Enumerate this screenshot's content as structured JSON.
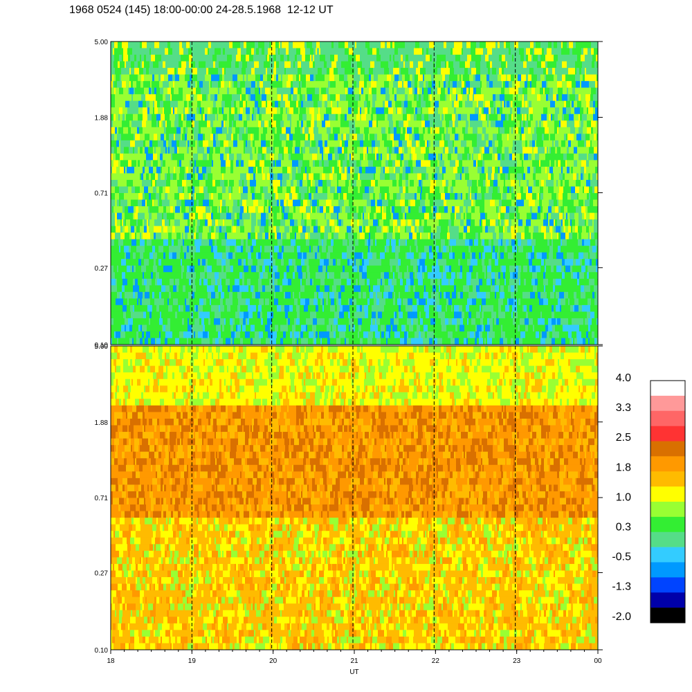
{
  "title": "1968 0524 (145) 18:00-00:00 24-28.5.1968  12-12 UT",
  "chart_data": [
    {
      "type": "heatmap",
      "panel": "top",
      "yticks": [
        "5.00",
        "1.88",
        "0.71",
        "0.27",
        "0.10"
      ],
      "xlim": [
        18,
        24
      ],
      "ylim": [
        0.1,
        5.0
      ],
      "yscale": "log"
    },
    {
      "type": "heatmap",
      "panel": "bottom",
      "yticks": [
        "5.00",
        "1.88",
        "0.71",
        "0.27",
        "0.10"
      ],
      "xticks": [
        "18",
        "19",
        "20",
        "21",
        "22",
        "23",
        "00"
      ],
      "xlabel": "UT",
      "xlim": [
        18,
        24
      ],
      "ylim": [
        0.1,
        5.0
      ],
      "yscale": "log"
    }
  ],
  "colorbar": {
    "labels": [
      "4.0",
      "3.3",
      "2.5",
      "1.8",
      "1.0",
      "0.3",
      "-0.5",
      "-1.3",
      "-2.0"
    ],
    "colors": [
      "#ffffff",
      "#ff9999",
      "#ff6666",
      "#ff3333",
      "#d97000",
      "#ff9900",
      "#ffbb00",
      "#ffff00",
      "#99ff33",
      "#33ee33",
      "#55dd88",
      "#33ccff",
      "#0099ff",
      "#0044ff",
      "#0000aa",
      "#000000"
    ]
  },
  "palette": {
    "top": [
      "#33ccff",
      "#55dd88",
      "#33ee33",
      "#99ff33",
      "#ffff00",
      "#0099ff"
    ],
    "bottom": [
      "#ffbb00",
      "#ff9900",
      "#d97000",
      "#ffff00",
      "#99ff33",
      "#55dd88"
    ]
  }
}
